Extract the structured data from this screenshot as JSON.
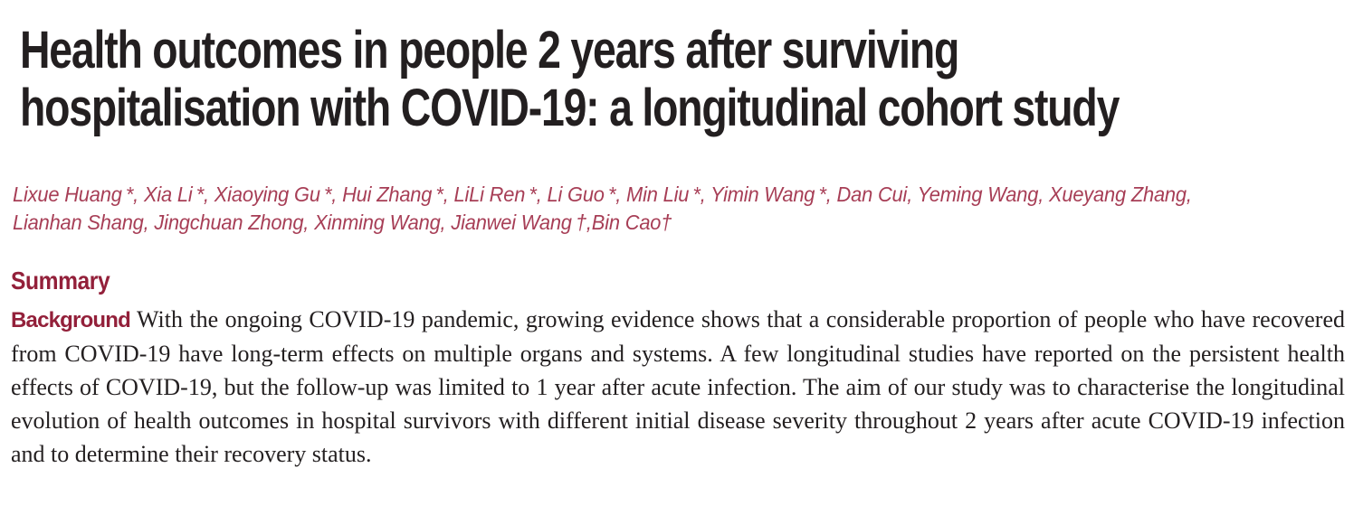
{
  "page": {
    "background_color": "#ffffff",
    "title_color": "#231f20",
    "body_text_color": "#231f20",
    "heading_accent_color": "#93203a",
    "author_color": "#a73e56"
  },
  "article": {
    "title_lines": [
      "Health outcomes in people 2 years after surviving",
      "hospitalisation with COVID-19: a longitudinal cohort study"
    ],
    "author_lines": [
      "Lixue Huang *, Xia Li *, Xiaoying Gu *, Hui Zhang *, LiLi Ren *, Li Guo *, Min Liu *, Yimin Wang *, Dan Cui, Yeming Wang, Xueyang Zhang,",
      "Lianhan Shang, Jingchuan Zhong, Xinming Wang, Jianwei Wang †,Bin Cao†"
    ],
    "summary": {
      "heading": "Summary",
      "background_label": "Background",
      "background_text": "With the ongoing COVID-19 pandemic, growing evidence shows that a considerable proportion of people who have recovered from COVID-19 have long-term effects on multiple organs and systems. A few longitudinal studies have reported on the persistent health effects of COVID-19, but the follow-up was limited to 1 year after acute infection. The aim of our study was to characterise the longitudinal evolution of health outcomes in hospital survivors with different initial disease severity throughout 2 years after acute COVID-19 infection and to determine their recovery status."
    }
  }
}
